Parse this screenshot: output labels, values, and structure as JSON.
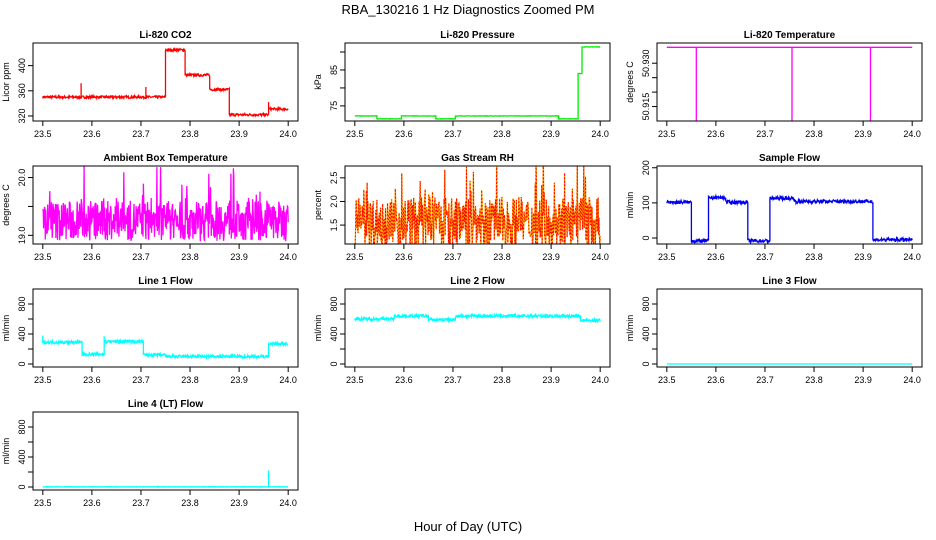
{
  "title": "RBA_130216  1 Hz Diagnostics Zoomed PM",
  "xlabel": "Hour of Day (UTC)",
  "chart_data": [
    {
      "type": "line",
      "title": "Li-820 CO2",
      "ylabel": "Licor ppm",
      "color": "#ff0000",
      "xlim": [
        23.5,
        24.0
      ],
      "xticks": [
        "23.5",
        "23.6",
        "23.7",
        "23.8",
        "23.9",
        "24.0"
      ],
      "ylim": [
        312,
        436
      ],
      "yticks": [
        {
          "v": 320,
          "l": "320"
        },
        {
          "v": 360,
          "l": "360"
        },
        {
          "v": 400,
          "l": "400"
        }
      ],
      "segments": [
        [
          23.5,
          23.75,
          350
        ],
        [
          23.75,
          23.79,
          425
        ],
        [
          23.79,
          23.84,
          385
        ],
        [
          23.84,
          23.88,
          362
        ],
        [
          23.88,
          23.96,
          322
        ],
        [
          23.96,
          24.0,
          331
        ]
      ],
      "spikes": [
        [
          23.578,
          372
        ],
        [
          23.71,
          366
        ],
        [
          23.96,
          342
        ]
      ],
      "noise": 2
    },
    {
      "type": "line",
      "title": "Li-820 Pressure",
      "ylabel": "kPa",
      "color": "#00ee00",
      "xlim": [
        23.5,
        24.0
      ],
      "xticks": [
        "23.5",
        "23.6",
        "23.7",
        "23.8",
        "23.9",
        "24.0"
      ],
      "ylim": [
        70.8,
        92.5
      ],
      "yticks": [
        {
          "v": 75,
          "l": "75"
        },
        {
          "v": 80,
          "l": ""
        },
        {
          "v": 85,
          "l": "85"
        },
        {
          "v": 90,
          "l": ""
        }
      ],
      "segments": [
        [
          23.5,
          23.545,
          72.2
        ],
        [
          23.545,
          23.595,
          71.4
        ],
        [
          23.595,
          23.665,
          72.2
        ],
        [
          23.665,
          23.705,
          71.4
        ],
        [
          23.705,
          23.915,
          72.2
        ],
        [
          23.915,
          23.955,
          71.4
        ],
        [
          23.955,
          23.963,
          84
        ],
        [
          23.963,
          24.0,
          91.4
        ]
      ],
      "spikes": [],
      "noise": 0.05
    },
    {
      "type": "line",
      "title": "Li-820 Temperature",
      "ylabel": "degrees C",
      "color": "#ff00ff",
      "xlim": [
        23.5,
        24.0
      ],
      "xticks": [
        "23.5",
        "23.6",
        "23.7",
        "23.8",
        "23.9",
        "24.0"
      ],
      "ylim": [
        50.91,
        50.937
      ],
      "yticks": [
        {
          "v": 50.915,
          "l": "50.915"
        },
        {
          "v": 50.92,
          "l": ""
        },
        {
          "v": 50.925,
          "l": ""
        },
        {
          "v": 50.93,
          "l": "50.930"
        }
      ],
      "segments": [
        [
          23.5,
          24.0,
          50.9355
        ]
      ],
      "spikes": [
        [
          23.56,
          50.91
        ],
        [
          23.755,
          50.91
        ],
        [
          23.915,
          50.91
        ]
      ],
      "noise": 0
    },
    {
      "type": "line",
      "title": "Ambient Box Temperature",
      "ylabel": "degrees C",
      "color": "#ff00ff",
      "xlim": [
        23.5,
        24.0
      ],
      "xticks": [
        "23.5",
        "23.6",
        "23.7",
        "23.8",
        "23.9",
        "24.0"
      ],
      "ylim": [
        18.85,
        20.2
      ],
      "yticks": [
        {
          "v": 19.0,
          "l": "19.0"
        },
        {
          "v": 19.5,
          "l": ""
        },
        {
          "v": 20.0,
          "l": "20.0"
        }
      ],
      "segments": [
        [
          23.5,
          24.0,
          19.25
        ]
      ],
      "spikes": [],
      "noise": 0.35
    },
    {
      "type": "line",
      "title": "Gas Stream RH",
      "ylabel": "percent",
      "color": "#ffaa00",
      "color2": "#ff0000",
      "xlim": [
        23.5,
        24.0
      ],
      "xticks": [
        "23.5",
        "23.6",
        "23.7",
        "23.8",
        "23.9",
        "24.0"
      ],
      "ylim": [
        1.1,
        2.75
      ],
      "yticks": [
        {
          "v": 1.5,
          "l": "1.5"
        },
        {
          "v": 2.0,
          "l": "2.0"
        },
        {
          "v": 2.5,
          "l": "2.5"
        }
      ],
      "segments": [
        [
          23.5,
          24.0,
          1.55
        ]
      ],
      "spikes": [],
      "noise": 0.55
    },
    {
      "type": "line",
      "title": "Sample Flow",
      "ylabel": "ml/min",
      "color": "#0000ee",
      "xlim": [
        23.5,
        24.0
      ],
      "xticks": [
        "23.5",
        "23.6",
        "23.7",
        "23.8",
        "23.9",
        "24.0"
      ],
      "ylim": [
        -17,
        205
      ],
      "yticks": [
        {
          "v": 0,
          "l": "0"
        },
        {
          "v": 100,
          "l": "100"
        },
        {
          "v": 200,
          "l": "200"
        }
      ],
      "segments": [
        [
          23.5,
          23.55,
          102
        ],
        [
          23.55,
          23.585,
          -8
        ],
        [
          23.585,
          23.62,
          115
        ],
        [
          23.62,
          23.665,
          102
        ],
        [
          23.665,
          23.71,
          -8
        ],
        [
          23.71,
          23.76,
          113
        ],
        [
          23.76,
          23.92,
          104
        ],
        [
          23.92,
          24.0,
          -5
        ]
      ],
      "spikes": [],
      "noise": 5
    },
    {
      "type": "line",
      "title": "Line 1 Flow",
      "ylabel": "ml/min",
      "color": "#00ffff",
      "xlim": [
        23.5,
        24.0
      ],
      "xticks": [
        "23.5",
        "23.6",
        "23.7",
        "23.8",
        "23.9",
        "24.0"
      ],
      "ylim": [
        -40,
        1000
      ],
      "yticks": [
        {
          "v": 0,
          "l": "0"
        },
        {
          "v": 200,
          "l": ""
        },
        {
          "v": 400,
          "l": "400"
        },
        {
          "v": 600,
          "l": ""
        },
        {
          "v": 800,
          "l": "800"
        }
      ],
      "segments": [
        [
          23.5,
          23.58,
          290
        ],
        [
          23.58,
          23.625,
          130
        ],
        [
          23.625,
          23.705,
          300
        ],
        [
          23.705,
          23.75,
          120
        ],
        [
          23.75,
          23.96,
          100
        ],
        [
          23.96,
          24.0,
          270
        ]
      ],
      "spikes": [
        [
          23.5,
          380
        ],
        [
          23.625,
          370
        ]
      ],
      "noise": 20
    },
    {
      "type": "line",
      "title": "Line 2 Flow",
      "ylabel": "ml/min",
      "color": "#00ffff",
      "xlim": [
        23.5,
        24.0
      ],
      "xticks": [
        "23.5",
        "23.6",
        "23.7",
        "23.8",
        "23.9",
        "24.0"
      ],
      "ylim": [
        -40,
        1000
      ],
      "yticks": [
        {
          "v": 0,
          "l": "0"
        },
        {
          "v": 200,
          "l": ""
        },
        {
          "v": 400,
          "l": "400"
        },
        {
          "v": 600,
          "l": ""
        },
        {
          "v": 800,
          "l": "800"
        }
      ],
      "segments": [
        [
          23.5,
          23.58,
          600
        ],
        [
          23.58,
          23.65,
          640
        ],
        [
          23.65,
          23.705,
          590
        ],
        [
          23.705,
          23.96,
          640
        ],
        [
          23.96,
          24.0,
          580
        ]
      ],
      "spikes": [],
      "noise": 20
    },
    {
      "type": "line",
      "title": "Line 3 Flow",
      "ylabel": "ml/min",
      "color": "#00ffff",
      "xlim": [
        23.5,
        24.0
      ],
      "xticks": [
        "23.5",
        "23.6",
        "23.7",
        "23.8",
        "23.9",
        "24.0"
      ],
      "ylim": [
        -40,
        1000
      ],
      "yticks": [
        {
          "v": 0,
          "l": "0"
        },
        {
          "v": 200,
          "l": ""
        },
        {
          "v": 400,
          "l": "400"
        },
        {
          "v": 600,
          "l": ""
        },
        {
          "v": 800,
          "l": "800"
        }
      ],
      "segments": [
        [
          23.5,
          24.0,
          0
        ]
      ],
      "spikes": [],
      "noise": 0
    },
    {
      "type": "line",
      "title": "Line 4 (LT) Flow",
      "ylabel": "ml/min",
      "color": "#00ffff",
      "xlim": [
        23.5,
        24.0
      ],
      "xticks": [
        "23.5",
        "23.6",
        "23.7",
        "23.8",
        "23.9",
        "24.0"
      ],
      "ylim": [
        -40,
        1000
      ],
      "yticks": [
        {
          "v": 0,
          "l": "0"
        },
        {
          "v": 200,
          "l": ""
        },
        {
          "v": 400,
          "l": "400"
        },
        {
          "v": 600,
          "l": ""
        },
        {
          "v": 800,
          "l": "800"
        }
      ],
      "segments": [
        [
          23.5,
          24.0,
          2
        ]
      ],
      "spikes": [
        [
          23.96,
          220
        ]
      ],
      "noise": 2
    }
  ]
}
